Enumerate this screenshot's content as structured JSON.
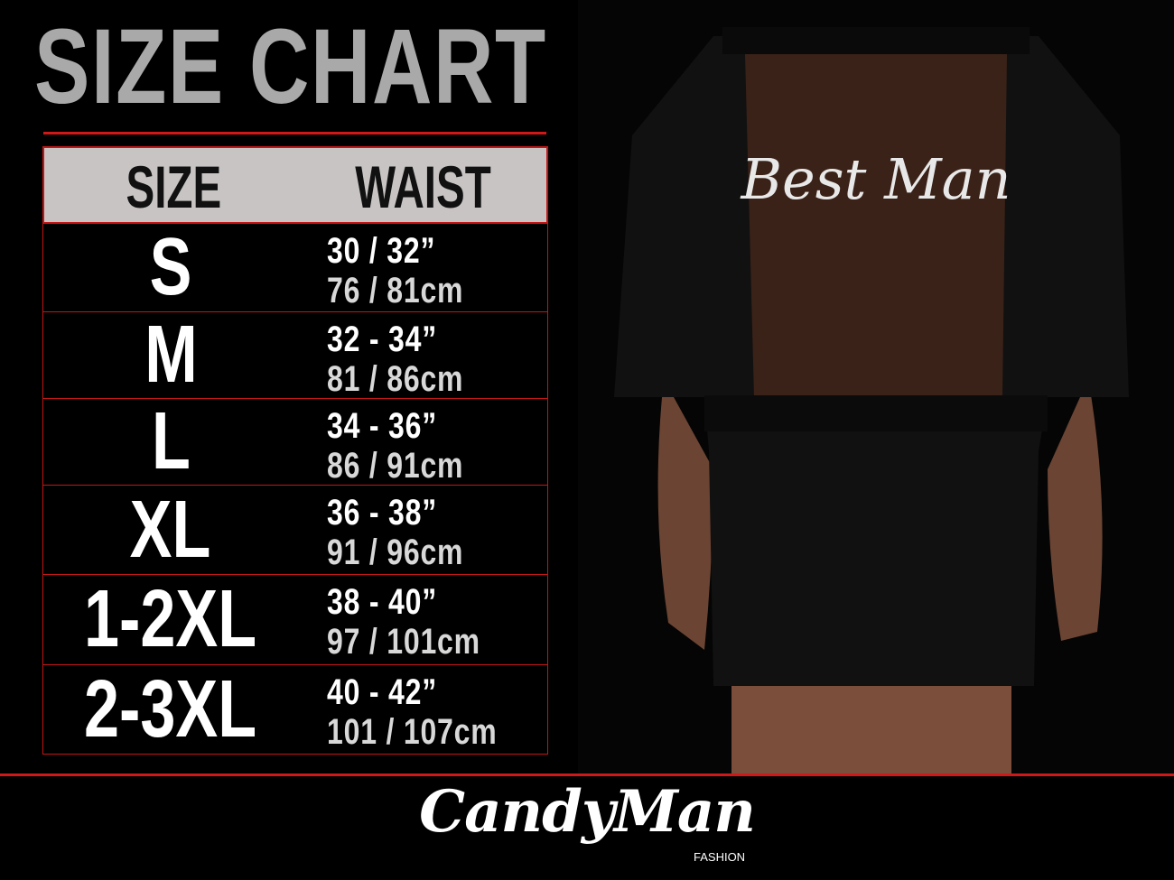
{
  "title": "SIZE CHART",
  "table": {
    "headers": [
      "SIZE",
      "WAIST"
    ],
    "rows": [
      {
        "size": "S",
        "inches": "30 / 32”",
        "cm": "76 / 81cm"
      },
      {
        "size": "M",
        "inches": "32 - 34”",
        "cm": "81 / 86cm"
      },
      {
        "size": "L",
        "inches": "34 - 36”",
        "cm": "86 / 91cm"
      },
      {
        "size": "XL",
        "inches": "36 - 38”",
        "cm": "91 / 96cm"
      },
      {
        "size": "1-2XL",
        "inches": "38 - 40”",
        "cm": "97 / 101cm"
      },
      {
        "size": "2-3XL",
        "inches": "40 - 42”",
        "cm": "101 / 107cm"
      }
    ]
  },
  "garment_print": "Best Man",
  "logo": {
    "brand": "CandyMan",
    "sub": "FASHION"
  },
  "colors": {
    "accent": "#d01818",
    "header_bg": "#c8c4c4",
    "title": "#a9a9a9",
    "background": "#000000"
  }
}
